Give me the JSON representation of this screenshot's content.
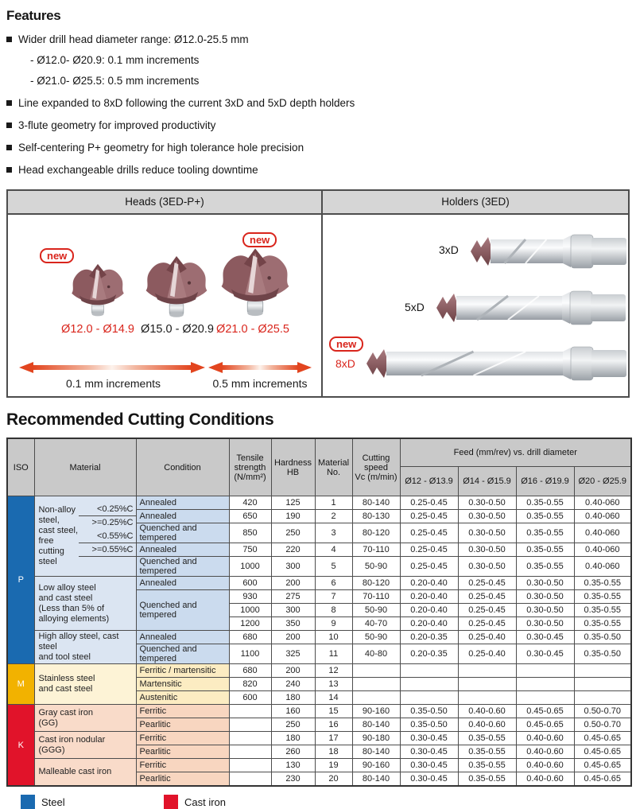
{
  "features": {
    "title": "Features",
    "items": [
      {
        "text": "Wider drill head diameter range: Ø12.0-25.5 mm",
        "subs": [
          "- Ø12.0- Ø20.9: 0.1 mm increments",
          "- Ø21.0- Ø25.5: 0.5 mm increments"
        ]
      },
      {
        "text": "Line expanded to 8xD following the current 3xD and 5xD depth holders",
        "subs": []
      },
      {
        "text": "3-flute geometry for improved productivity",
        "subs": []
      },
      {
        "text": "Self-centering P+ geometry for high tolerance hole precision",
        "subs": []
      },
      {
        "text": "Head exchangeable drills reduce tooling downtime",
        "subs": []
      }
    ]
  },
  "diagram": {
    "new_badge_text": "new",
    "heads_panel": {
      "title": "Heads (3ED-P+)",
      "heads": [
        {
          "label": "Ø12.0 - Ø14.9",
          "new": true,
          "color": "red"
        },
        {
          "label": "Ø15.0 - Ø20.9",
          "new": false,
          "color": "black"
        },
        {
          "label": "Ø21.0 - Ø25.5",
          "new": true,
          "color": "red"
        }
      ],
      "arrows": [
        {
          "label": "0.1 mm increments"
        },
        {
          "label": "0.5 mm increments"
        }
      ]
    },
    "holders_panel": {
      "title": "Holders (3ED)",
      "holders": [
        {
          "label": "3xD",
          "new": false
        },
        {
          "label": "5xD",
          "new": false
        },
        {
          "label": "8xD",
          "new": true
        }
      ]
    }
  },
  "cutting": {
    "title": "Recommended Cutting Conditions",
    "header": {
      "iso": "ISO",
      "material": "Material",
      "condition": "Condition",
      "tensile": "Tensile\nstrength\n(N/mm²)",
      "hardness": "Hardness\nHB",
      "material_no": "Material\nNo.",
      "cutting_speed": "Cutting\nspeed\nVc (m/min)",
      "feed_group": "Feed (mm/rev) vs. drill diameter",
      "feed_cols": [
        "Ø12 - Ø13.9",
        "Ø14 - Ø15.9",
        "Ø16 - Ø19.9",
        "Ø20 - Ø25.9"
      ]
    },
    "nonalloy": {
      "name": "Non-alloy steel,\ncast steel, free\ncutting steel",
      "subs": [
        "<0.25%C",
        ">=0.25%C",
        "<0.55%C",
        ">=0.55%C",
        ""
      ],
      "dividers_after": [
        0,
        2,
        3
      ]
    },
    "rows": [
      {
        "cells": [
          {
            "t": "P",
            "rs": 11,
            "cls": "iso iso-p"
          },
          {
            "nonalloy": true,
            "rs": 5,
            "cls": "mat bg-pm mat-special"
          },
          {
            "t": "Annealed",
            "cls": "cond bg-pc"
          },
          {
            "t": "420"
          },
          {
            "t": "125"
          },
          {
            "t": "1"
          },
          {
            "t": "80-140"
          },
          {
            "t": "0.25-0.45"
          },
          {
            "t": "0.30-0.50"
          },
          {
            "t": "0.35-0.55"
          },
          {
            "t": "0.40-060"
          }
        ]
      },
      {
        "cells": [
          {
            "t": "Annealed",
            "cls": "cond bg-pc"
          },
          {
            "t": "650"
          },
          {
            "t": "190"
          },
          {
            "t": "2"
          },
          {
            "t": "80-130"
          },
          {
            "t": "0.25-0.45"
          },
          {
            "t": "0.30-0.50"
          },
          {
            "t": "0.35-0.55"
          },
          {
            "t": "0.40-060"
          }
        ]
      },
      {
        "cells": [
          {
            "t": "Quenched and tempered",
            "cls": "cond bg-pc"
          },
          {
            "t": "850"
          },
          {
            "t": "250"
          },
          {
            "t": "3"
          },
          {
            "t": "80-120"
          },
          {
            "t": "0.25-0.45"
          },
          {
            "t": "0.30-0.50"
          },
          {
            "t": "0.35-0.55"
          },
          {
            "t": "0.40-060"
          }
        ]
      },
      {
        "cells": [
          {
            "t": "Annealed",
            "cls": "cond bg-pc"
          },
          {
            "t": "750"
          },
          {
            "t": "220"
          },
          {
            "t": "4"
          },
          {
            "t": "70-110"
          },
          {
            "t": "0.25-0.45"
          },
          {
            "t": "0.30-0.50"
          },
          {
            "t": "0.35-0.55"
          },
          {
            "t": "0.40-060"
          }
        ]
      },
      {
        "cells": [
          {
            "t": "Quenched and tempered",
            "cls": "cond bg-pc"
          },
          {
            "t": "1000"
          },
          {
            "t": "300"
          },
          {
            "t": "5"
          },
          {
            "t": "50-90"
          },
          {
            "t": "0.25-0.45"
          },
          {
            "t": "0.30-0.50"
          },
          {
            "t": "0.35-0.55"
          },
          {
            "t": "0.40-060"
          }
        ]
      },
      {
        "cells": [
          {
            "t": "Low alloy steel\nand cast steel\n(Less than 5% of\nalloying elements)",
            "rs": 4,
            "cls": "mat bg-pm"
          },
          {
            "t": "Annealed",
            "cls": "cond bg-pc"
          },
          {
            "t": "600"
          },
          {
            "t": "200"
          },
          {
            "t": "6"
          },
          {
            "t": "80-120"
          },
          {
            "t": "0.20-0.40"
          },
          {
            "t": "0.25-0.45"
          },
          {
            "t": "0.30-0.50"
          },
          {
            "t": "0.35-0.55"
          }
        ]
      },
      {
        "cells": [
          {
            "t": "Quenched and\ntempered",
            "rs": 3,
            "cls": "cond bg-pc"
          },
          {
            "t": "930"
          },
          {
            "t": "275"
          },
          {
            "t": "7"
          },
          {
            "t": "70-110"
          },
          {
            "t": "0.20-0.40"
          },
          {
            "t": "0.25-0.45"
          },
          {
            "t": "0.30-0.50"
          },
          {
            "t": "0.35-0.55"
          }
        ]
      },
      {
        "cells": [
          {
            "t": "1000"
          },
          {
            "t": "300"
          },
          {
            "t": "8"
          },
          {
            "t": "50-90"
          },
          {
            "t": "0.20-0.40"
          },
          {
            "t": "0.25-0.45"
          },
          {
            "t": "0.30-0.50"
          },
          {
            "t": "0.35-0.55"
          }
        ]
      },
      {
        "cells": [
          {
            "t": "1200"
          },
          {
            "t": "350"
          },
          {
            "t": "9"
          },
          {
            "t": "40-70"
          },
          {
            "t": "0.20-0.40"
          },
          {
            "t": "0.25-0.45"
          },
          {
            "t": "0.30-0.50"
          },
          {
            "t": "0.35-0.55"
          }
        ]
      },
      {
        "cells": [
          {
            "t": "High alloy steel, cast steel\nand tool steel",
            "rs": 2,
            "cls": "mat bg-pm"
          },
          {
            "t": "Annealed",
            "cls": "cond bg-pc"
          },
          {
            "t": "680"
          },
          {
            "t": "200"
          },
          {
            "t": "10"
          },
          {
            "t": "50-90"
          },
          {
            "t": "0.20-0.35"
          },
          {
            "t": "0.25-0.40"
          },
          {
            "t": "0.30-0.45"
          },
          {
            "t": "0.35-0.50"
          }
        ]
      },
      {
        "cells": [
          {
            "t": "Quenched and tempered",
            "cls": "cond bg-pc"
          },
          {
            "t": "1100"
          },
          {
            "t": "325"
          },
          {
            "t": "11"
          },
          {
            "t": "40-80"
          },
          {
            "t": "0.20-0.35"
          },
          {
            "t": "0.25-0.40"
          },
          {
            "t": "0.30-0.45"
          },
          {
            "t": "0.35-0.50"
          }
        ]
      },
      {
        "cells": [
          {
            "t": "M",
            "rs": 3,
            "cls": "iso iso-m"
          },
          {
            "t": "Stainless steel\nand cast steel",
            "rs": 3,
            "cls": "mat bg-mm"
          },
          {
            "t": "Ferritic / martensitic",
            "cls": "cond bg-mc"
          },
          {
            "t": "680"
          },
          {
            "t": "200"
          },
          {
            "t": "12"
          },
          {
            "t": ""
          },
          {
            "t": ""
          },
          {
            "t": ""
          },
          {
            "t": ""
          },
          {
            "t": ""
          }
        ]
      },
      {
        "cells": [
          {
            "t": "Martensitic",
            "cls": "cond bg-mc"
          },
          {
            "t": "820"
          },
          {
            "t": "240"
          },
          {
            "t": "13"
          },
          {
            "t": ""
          },
          {
            "t": ""
          },
          {
            "t": ""
          },
          {
            "t": ""
          },
          {
            "t": ""
          }
        ]
      },
      {
        "cells": [
          {
            "t": "Austenitic",
            "cls": "cond bg-mc"
          },
          {
            "t": "600"
          },
          {
            "t": "180"
          },
          {
            "t": "14"
          },
          {
            "t": ""
          },
          {
            "t": ""
          },
          {
            "t": ""
          },
          {
            "t": ""
          },
          {
            "t": ""
          }
        ]
      },
      {
        "cells": [
          {
            "t": "K",
            "rs": 6,
            "cls": "iso iso-k"
          },
          {
            "t": "Gray cast iron\n(GG)",
            "rs": 2,
            "cls": "mat bg-km"
          },
          {
            "t": "Ferritic",
            "cls": "cond bg-kc"
          },
          {
            "t": ""
          },
          {
            "t": "160"
          },
          {
            "t": "15"
          },
          {
            "t": "90-160"
          },
          {
            "t": "0.35-0.50"
          },
          {
            "t": "0.40-0.60"
          },
          {
            "t": "0.45-0.65"
          },
          {
            "t": "0.50-0.70"
          }
        ]
      },
      {
        "cells": [
          {
            "t": "Pearlitic",
            "cls": "cond bg-kc"
          },
          {
            "t": ""
          },
          {
            "t": "250"
          },
          {
            "t": "16"
          },
          {
            "t": "80-140"
          },
          {
            "t": "0.35-0.50"
          },
          {
            "t": "0.40-0.60"
          },
          {
            "t": "0.45-0.65"
          },
          {
            "t": "0.50-0.70"
          }
        ]
      },
      {
        "cells": [
          {
            "t": "Cast iron nodular\n(GGG)",
            "rs": 2,
            "cls": "mat bg-km"
          },
          {
            "t": "Ferritic",
            "cls": "cond bg-kc"
          },
          {
            "t": ""
          },
          {
            "t": "180"
          },
          {
            "t": "17"
          },
          {
            "t": "90-180"
          },
          {
            "t": "0.30-0.45"
          },
          {
            "t": "0.35-0.55"
          },
          {
            "t": "0.40-0.60"
          },
          {
            "t": "0.45-0.65"
          }
        ]
      },
      {
        "cells": [
          {
            "t": "Pearlitic",
            "cls": "cond bg-kc"
          },
          {
            "t": ""
          },
          {
            "t": "260"
          },
          {
            "t": "18"
          },
          {
            "t": "80-140"
          },
          {
            "t": "0.30-0.45"
          },
          {
            "t": "0.35-0.55"
          },
          {
            "t": "0.40-0.60"
          },
          {
            "t": "0.45-0.65"
          }
        ]
      },
      {
        "cells": [
          {
            "t": "Malleable cast iron",
            "rs": 2,
            "cls": "mat bg-km"
          },
          {
            "t": "Ferritic",
            "cls": "cond bg-kc"
          },
          {
            "t": ""
          },
          {
            "t": "130"
          },
          {
            "t": "19"
          },
          {
            "t": "90-160"
          },
          {
            "t": "0.30-0.45"
          },
          {
            "t": "0.35-0.55"
          },
          {
            "t": "0.40-0.60"
          },
          {
            "t": "0.45-0.65"
          }
        ]
      },
      {
        "cells": [
          {
            "t": "Pearlitic",
            "cls": "cond bg-kc"
          },
          {
            "t": ""
          },
          {
            "t": "230"
          },
          {
            "t": "20"
          },
          {
            "t": "80-140"
          },
          {
            "t": "0.30-0.45"
          },
          {
            "t": "0.35-0.55"
          },
          {
            "t": "0.40-0.60"
          },
          {
            "t": "0.45-0.65"
          }
        ]
      }
    ]
  },
  "legend": [
    {
      "label": "Steel",
      "color": "#1a6ab0"
    },
    {
      "label": "Cast iron",
      "color": "#e1132a"
    }
  ],
  "colors": {
    "accent_red": "#d9251c",
    "iso_p_blue": "#1a6ab0",
    "iso_m_gold": "#f2b200",
    "iso_k_red": "#e1132a"
  }
}
